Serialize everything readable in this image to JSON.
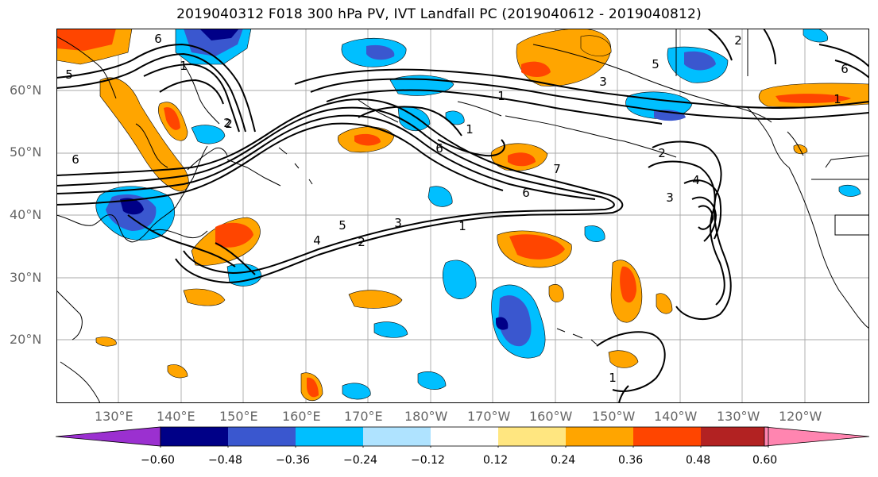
{
  "title": "2019040312 F018 300 hPa PV, IVT Landfall PC (2019040612 - 2019040812)",
  "map": {
    "lat_labels": [
      "60°N",
      "50°N",
      "40°N",
      "30°N",
      "20°N"
    ],
    "lon_labels": [
      "130°E",
      "140°E",
      "150°E",
      "160°E",
      "170°E",
      "180°W",
      "170°W",
      "160°W",
      "150°W",
      "140°W",
      "130°W",
      "120°W"
    ],
    "contour_labels": [
      "6",
      "1",
      "2",
      "5",
      "6",
      "4",
      "5",
      "2",
      "3",
      "1",
      "1",
      "6",
      "7",
      "6",
      "2",
      "1",
      "2",
      "5",
      "3",
      "6",
      "1",
      "2",
      "4",
      "3",
      "1"
    ]
  },
  "colorbar": {
    "tick_labels": [
      "−0.60",
      "−0.48",
      "−0.36",
      "−0.24",
      "−0.12",
      "0.12",
      "0.24",
      "0.36",
      "0.48",
      "0.60"
    ],
    "colors": [
      "#9b30d0",
      "#000087",
      "#3a57cf",
      "#00bfff",
      "#afe3ff",
      "#ffffff",
      "#ffe680",
      "#ffa500",
      "#ff4500",
      "#b22222",
      "#ff85b0"
    ]
  }
}
